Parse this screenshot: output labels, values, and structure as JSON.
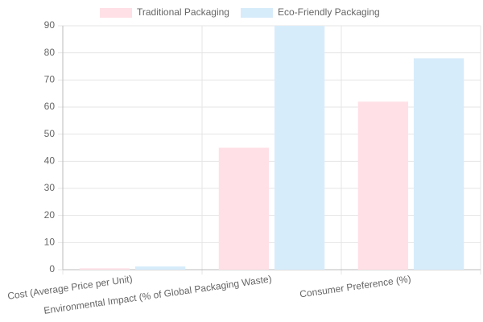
{
  "chart_data": {
    "type": "bar",
    "categories": [
      "Cost (Average Price per Unit)",
      "Environmental Impact (% of Global Packaging Waste)",
      "Consumer Preference (%)"
    ],
    "series": [
      {
        "name": "Traditional Packaging",
        "color": "#ffe0e6",
        "values": [
          0.5,
          45,
          62
        ]
      },
      {
        "name": "Eco-Friendly Packaging",
        "color": "#d7ecfb",
        "values": [
          1.2,
          90,
          78
        ]
      }
    ],
    "ylim": [
      0,
      90
    ],
    "yticks": [
      0,
      10,
      20,
      30,
      40,
      50,
      60,
      70,
      80,
      90
    ],
    "grid": true,
    "legend": "top"
  }
}
